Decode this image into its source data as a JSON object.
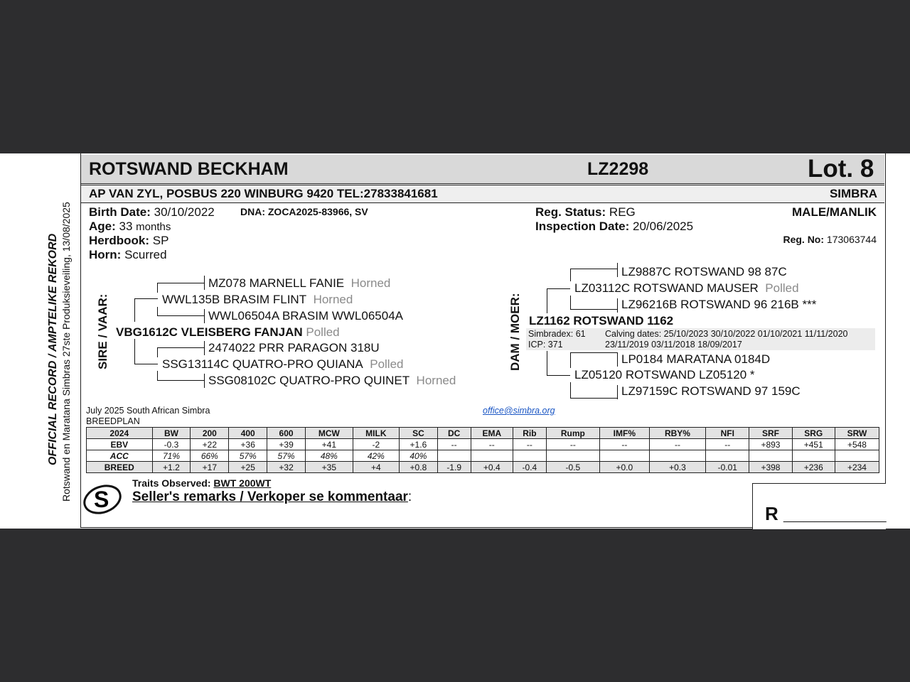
{
  "side": {
    "line1": "OFFICIAL RECORD / AMPTELIKE REKORD",
    "line2": "Rotswand en Maratana Simbras 27ste Produksieveiling, 13/08/2025"
  },
  "header": {
    "name": "ROTSWAND BECKHAM",
    "id": "LZ2298",
    "lot": "Lot. 8"
  },
  "owner": {
    "text": "AP VAN ZYL, POSBUS 220 WINBURG 9420 TEL:27833841681",
    "breed": "SIMBRA"
  },
  "details": {
    "birth_label": "Birth Date:",
    "birth": "30/10/2022",
    "dna": "DNA: ZOCA2025-83966, SV",
    "age_label": "Age:",
    "age": "33",
    "age_unit": "months",
    "herdbook_label": "Herdbook:",
    "herdbook": "SP",
    "horn_label": "Horn:",
    "horn": "Scurred",
    "reg_status_label": "Reg. Status:",
    "reg_status": "REG",
    "inspection_label": "Inspection Date:",
    "inspection": "20/06/2025",
    "sex": "MALE/MANLIK",
    "regno_label": "Reg. No:",
    "regno": "173063744"
  },
  "sire": {
    "label": "SIRE / VAAR:",
    "name": "VBG1612C VLEISBERG FANJAN",
    "horn": "Polled",
    "ss": {
      "name": "WWL135B BRASIM FLINT",
      "horn": "Horned"
    },
    "sss": {
      "name": "MZ078 MARNELL FANIE",
      "horn": "Horned"
    },
    "ssd": {
      "name": "WWL06504A BRASIM WWL06504A",
      "horn": ""
    },
    "sd": {
      "name": "SSG13114C QUATRO-PRO QUIANA",
      "horn": "Polled"
    },
    "sds": {
      "name": "2474022 PRR PARAGON 318U",
      "horn": ""
    },
    "sdd": {
      "name": "SSG08102C QUATRO-PRO QUINET",
      "horn": "Horned"
    }
  },
  "dam": {
    "label": "DAM / MOER:",
    "name": "LZ1162 ROTSWAND 1162",
    "simbradex": "Simbradex: 61",
    "icp": "ICP: 371",
    "calving1": "Calving dates: 25/10/2023  30/10/2022  01/10/2021  11/11/2020",
    "calving2": "23/11/2019  03/11/2018  18/09/2017",
    "ds": {
      "name": "LZ03112C ROTSWAND MAUSER",
      "horn": "Polled"
    },
    "dss": {
      "name": "LZ9887C ROTSWAND 98 87C"
    },
    "dsd": {
      "name": "LZ96216B ROTSWAND 96 216B ***"
    },
    "dd": {
      "name": "LZ05120 ROTSWAND LZ05120 *"
    },
    "dds": {
      "name": "LP0184 MARATANA 0184D"
    },
    "ddd": {
      "name": "LZ97159C ROTSWAND 97 159C"
    }
  },
  "ebv": {
    "source1": "July 2025 South African Simbra",
    "source2": "BREEDPLAN",
    "email": "office@simbra.org",
    "header": [
      "2024",
      "BW",
      "200",
      "400",
      "600",
      "MCW",
      "MILK",
      "SC",
      "DC",
      "EMA",
      "Rib",
      "Rump",
      "IMF%",
      "RBY%",
      "NFI",
      "SRF",
      "SRG",
      "SRW"
    ],
    "rows": [
      [
        "EBV",
        "-0.3",
        "+22",
        "+36",
        "+39",
        "+41",
        "-2",
        "+1.6",
        "--",
        "--",
        "--",
        "--",
        "--",
        "--",
        "--",
        "+893",
        "+451",
        "+548"
      ],
      [
        "ACC",
        "71%",
        "66%",
        "57%",
        "57%",
        "48%",
        "42%",
        "40%",
        "",
        "",
        "",
        "",
        "",
        "",
        "",
        "",
        "",
        ""
      ],
      [
        "BREED",
        "+1.2",
        "+17",
        "+25",
        "+32",
        "+35",
        "+4",
        "+0.8",
        "-1.9",
        "+0.4",
        "-0.4",
        "-0.5",
        "+0.0",
        "+0.3",
        "-0.01",
        "+398",
        "+236",
        "+234"
      ]
    ]
  },
  "footer": {
    "traits_label": "Traits Observed:",
    "traits": "BWT  200WT",
    "remarks": "Seller's remarks / Verkoper se kommentaar",
    "colon": ":",
    "r_label": "R __________",
    "logo": "S"
  }
}
